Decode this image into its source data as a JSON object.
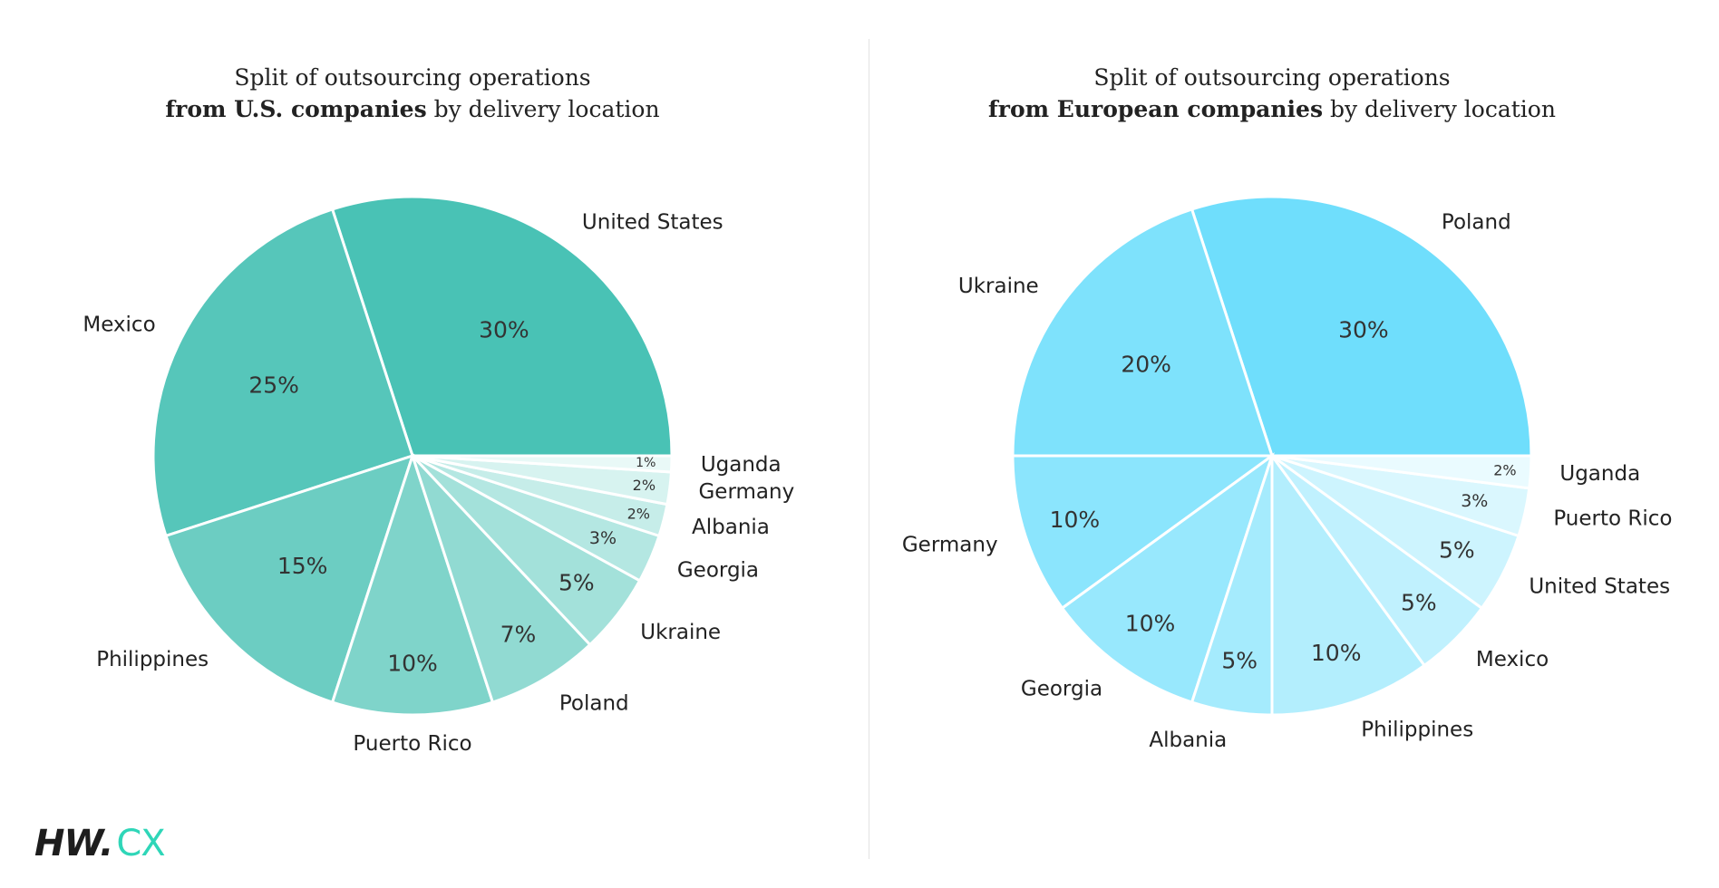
{
  "chart_data": [
    {
      "type": "pie",
      "title_line1": "Split of outsourcing operations",
      "title_bold": "from U.S. companies",
      "title_rest": " by delivery location",
      "categories": [
        "United States",
        "Mexico",
        "Philippines",
        "Puerto Rico",
        "Poland",
        "Ukraine",
        "Georgia",
        "Albania",
        "Germany",
        "Uganda"
      ],
      "values": [
        30,
        25,
        15,
        10,
        7,
        5,
        3,
        2,
        2,
        1
      ],
      "labels": [
        "30%",
        "25%",
        "15%",
        "10%",
        "7%",
        "5%",
        "3%",
        "2%",
        "2%",
        "1%"
      ],
      "colors": [
        "#49c2b5",
        "#56c6ba",
        "#6ccdc2",
        "#7fd4ca",
        "#91dad2",
        "#a3e1da",
        "#b4e7e2",
        "#c6ede9",
        "#d7f3f0",
        "#e9f9f7"
      ]
    },
    {
      "type": "pie",
      "title_line1": "Split of outsourcing operations",
      "title_bold": "from European companies",
      "title_rest": " by delivery location",
      "categories": [
        "Poland",
        "Ukraine",
        "Germany",
        "Georgia",
        "Albania",
        "Philippines",
        "Mexico",
        "United States",
        "Puerto Rico",
        "Uganda"
      ],
      "values": [
        30,
        20,
        10,
        10,
        5,
        10,
        5,
        5,
        3,
        2
      ],
      "labels": [
        "30%",
        "20%",
        "10%",
        "10%",
        "5%",
        "10%",
        "5%",
        "5%",
        "3%",
        "2%"
      ],
      "colors": [
        "#6fdefc",
        "#7ee2fc",
        "#8be5fd",
        "#98e8fd",
        "#a5ebfd",
        "#b3eefd",
        "#c0f1fe",
        "#cdf4fe",
        "#daf7fe",
        "#eafbff"
      ]
    }
  ],
  "logo": {
    "part1": "HW.",
    "part2": "CX"
  }
}
